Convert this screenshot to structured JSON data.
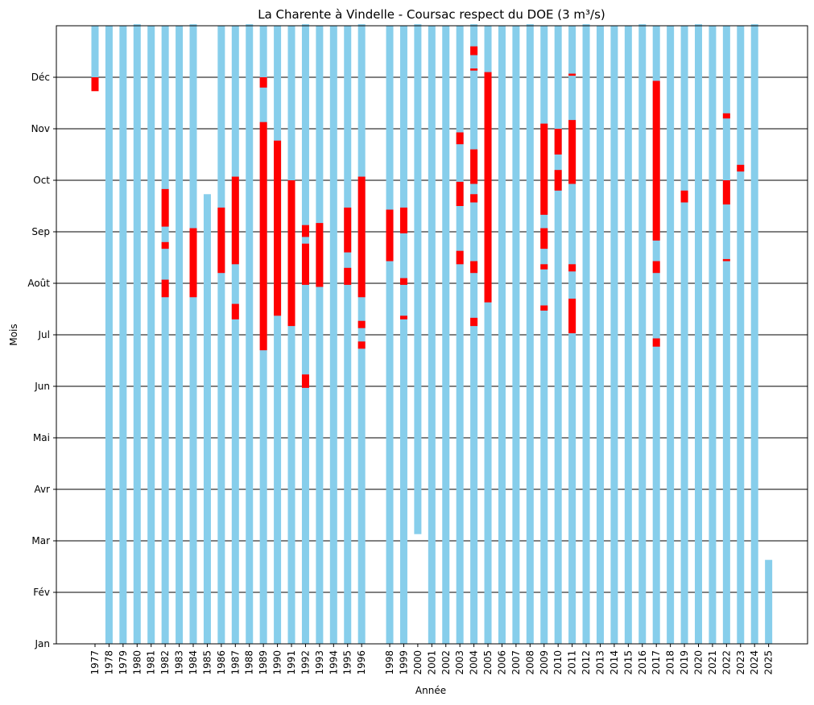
{
  "chart_data": {
    "type": "bar",
    "title": "La Charente à Vindelle - Coursac respect du DOE (3 m³/s)",
    "xlabel": "Année",
    "ylabel": "Mois",
    "ylim": [
      0,
      12
    ],
    "y_ticks": [
      {
        "label": "Jan",
        "value": 0
      },
      {
        "label": "Fév",
        "value": 1
      },
      {
        "label": "Mar",
        "value": 2
      },
      {
        "label": "Avr",
        "value": 3
      },
      {
        "label": "Mai",
        "value": 4
      },
      {
        "label": "Jun",
        "value": 5
      },
      {
        "label": "Jul",
        "value": 6
      },
      {
        "label": "Août",
        "value": 7
      },
      {
        "label": "Sep",
        "value": 8
      },
      {
        "label": "Oct",
        "value": 9
      },
      {
        "label": "Nov",
        "value": 10
      },
      {
        "label": "Déc",
        "value": 11
      }
    ],
    "grid": "horizontal",
    "colors": {
      "ok": "#87ceeb",
      "below_doe": "#ff0000"
    },
    "years": [
      {
        "year": "1977",
        "data": [
          10.8,
          12.0
        ],
        "below": [
          [
            10.73,
            11.0
          ]
        ]
      },
      {
        "year": "1978",
        "data": [
          0.0,
          12.0
        ],
        "below": []
      },
      {
        "year": "1979",
        "data": [
          0.0,
          12.0
        ],
        "below": []
      },
      {
        "year": "1980",
        "data": [
          0.0,
          12.03
        ],
        "below": []
      },
      {
        "year": "1981",
        "data": [
          0.0,
          12.0
        ],
        "below": []
      },
      {
        "year": "1982",
        "data": [
          0.0,
          12.0
        ],
        "below": [
          [
            6.73,
            7.07
          ],
          [
            7.67,
            7.8
          ],
          [
            8.1,
            8.83
          ]
        ]
      },
      {
        "year": "1983",
        "data": [
          0.0,
          12.0
        ],
        "below": []
      },
      {
        "year": "1984",
        "data": [
          0.0,
          12.03
        ],
        "below": [
          [
            6.73,
            8.07
          ]
        ]
      },
      {
        "year": "1985",
        "data": [
          0.0,
          8.73
        ],
        "below": []
      },
      {
        "year": "1986",
        "data": [
          0.0,
          12.0
        ],
        "below": [
          [
            7.2,
            8.47
          ]
        ]
      },
      {
        "year": "1987",
        "data": [
          0.0,
          12.0
        ],
        "below": [
          [
            6.3,
            6.6
          ],
          [
            7.37,
            9.07
          ]
        ]
      },
      {
        "year": "1988",
        "data": [
          0.0,
          12.03
        ],
        "below": []
      },
      {
        "year": "1989",
        "data": [
          0.0,
          12.0
        ],
        "below": [
          [
            5.7,
            10.13
          ],
          [
            10.8,
            11.0
          ]
        ]
      },
      {
        "year": "1990",
        "data": [
          0.0,
          12.0
        ],
        "below": [
          [
            6.37,
            9.77
          ]
        ]
      },
      {
        "year": "1991",
        "data": [
          0.0,
          12.0
        ],
        "below": [
          [
            6.17,
            9.0
          ]
        ]
      },
      {
        "year": "1992",
        "data": [
          0.0,
          12.03
        ],
        "below": [
          [
            4.97,
            5.23
          ],
          [
            6.97,
            7.77
          ],
          [
            7.9,
            8.13
          ]
        ]
      },
      {
        "year": "1993",
        "data": [
          0.0,
          12.0
        ],
        "below": [
          [
            6.93,
            8.17
          ]
        ]
      },
      {
        "year": "1994",
        "data": [
          0.0,
          12.0
        ],
        "below": []
      },
      {
        "year": "1995",
        "data": [
          0.0,
          12.0
        ],
        "below": [
          [
            6.97,
            7.3
          ],
          [
            7.6,
            8.47
          ]
        ]
      },
      {
        "year": "1996",
        "data": [
          0.0,
          12.03
        ],
        "below": [
          [
            5.73,
            5.87
          ],
          [
            6.13,
            6.27
          ],
          [
            6.73,
            9.07
          ]
        ]
      },
      {
        "year": "1998",
        "data": [
          0.0,
          12.0
        ],
        "below": [
          [
            7.43,
            8.43
          ]
        ]
      },
      {
        "year": "1999",
        "data": [
          0.0,
          12.0
        ],
        "below": [
          [
            6.3,
            6.37
          ],
          [
            6.97,
            7.1
          ],
          [
            7.97,
            8.47
          ]
        ]
      },
      {
        "year": "2000",
        "data": [
          2.13,
          12.03
        ],
        "below": []
      },
      {
        "year": "2001",
        "data": [
          0.0,
          12.0
        ],
        "below": []
      },
      {
        "year": "2002",
        "data": [
          0.0,
          12.0
        ],
        "below": []
      },
      {
        "year": "2003",
        "data": [
          0.0,
          12.0
        ],
        "below": [
          [
            7.37,
            7.63
          ],
          [
            8.5,
            8.97
          ],
          [
            9.7,
            9.93
          ]
        ]
      },
      {
        "year": "2004",
        "data": [
          0.0,
          12.03
        ],
        "below": [
          [
            6.17,
            6.33
          ],
          [
            7.2,
            7.43
          ],
          [
            8.57,
            8.73
          ],
          [
            8.93,
            9.6
          ],
          [
            11.13,
            11.17
          ],
          [
            11.43,
            11.6
          ]
        ]
      },
      {
        "year": "2005",
        "data": [
          0.0,
          12.0
        ],
        "below": [
          [
            6.63,
            11.1
          ]
        ]
      },
      {
        "year": "2006",
        "data": [
          0.0,
          12.0
        ],
        "below": []
      },
      {
        "year": "2007",
        "data": [
          0.0,
          12.0
        ],
        "below": []
      },
      {
        "year": "2008",
        "data": [
          0.0,
          12.03
        ],
        "below": []
      },
      {
        "year": "2009",
        "data": [
          0.0,
          12.0
        ],
        "below": [
          [
            6.47,
            6.57
          ],
          [
            7.27,
            7.37
          ],
          [
            7.67,
            8.07
          ],
          [
            8.33,
            10.1
          ]
        ]
      },
      {
        "year": "2010",
        "data": [
          0.0,
          12.0
        ],
        "below": [
          [
            8.8,
            9.2
          ],
          [
            9.5,
            10.0
          ]
        ]
      },
      {
        "year": "2011",
        "data": [
          0.0,
          12.0
        ],
        "below": [
          [
            6.03,
            6.7
          ],
          [
            7.23,
            7.37
          ],
          [
            8.93,
            10.17
          ],
          [
            11.03,
            11.07
          ]
        ]
      },
      {
        "year": "2012",
        "data": [
          0.0,
          12.03
        ],
        "below": []
      },
      {
        "year": "2013",
        "data": [
          0.0,
          12.0
        ],
        "below": []
      },
      {
        "year": "2014",
        "data": [
          0.0,
          12.0
        ],
        "below": []
      },
      {
        "year": "2015",
        "data": [
          0.0,
          12.0
        ],
        "below": []
      },
      {
        "year": "2016",
        "data": [
          0.0,
          12.03
        ],
        "below": []
      },
      {
        "year": "2017",
        "data": [
          0.0,
          12.0
        ],
        "below": [
          [
            5.77,
            5.93
          ],
          [
            7.2,
            7.43
          ],
          [
            7.83,
            10.93
          ]
        ]
      },
      {
        "year": "2018",
        "data": [
          0.0,
          12.0
        ],
        "below": []
      },
      {
        "year": "2019",
        "data": [
          0.0,
          12.0
        ],
        "below": [
          [
            8.57,
            8.8
          ]
        ]
      },
      {
        "year": "2020",
        "data": [
          0.0,
          12.03
        ],
        "below": []
      },
      {
        "year": "2021",
        "data": [
          0.0,
          12.0
        ],
        "below": []
      },
      {
        "year": "2022",
        "data": [
          0.0,
          12.0
        ],
        "below": [
          [
            7.43,
            7.47
          ],
          [
            8.53,
            9.0
          ],
          [
            10.2,
            10.3
          ]
        ]
      },
      {
        "year": "2023",
        "data": [
          0.0,
          12.0
        ],
        "below": [
          [
            9.17,
            9.3
          ]
        ]
      },
      {
        "year": "2024",
        "data": [
          0.0,
          12.03
        ],
        "below": []
      },
      {
        "year": "2025",
        "data": [
          0.0,
          1.63
        ],
        "below": []
      }
    ]
  }
}
